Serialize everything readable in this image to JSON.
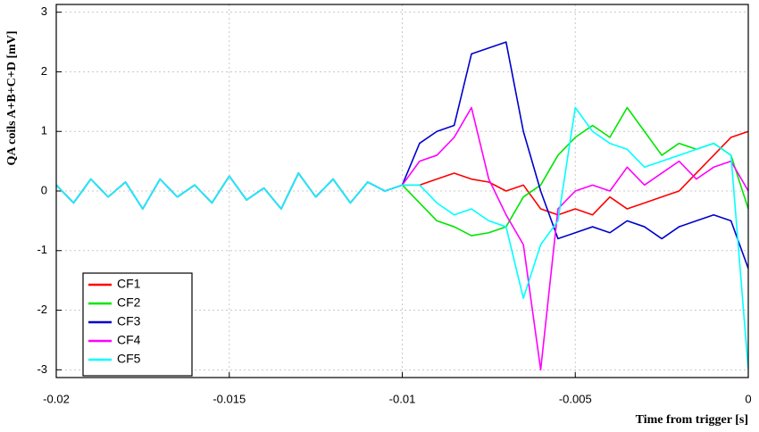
{
  "chart_data": {
    "type": "line",
    "xlabel": "Time from trigger [s]",
    "ylabel": "QA coils A+B+C+D [mV]",
    "x": [
      -0.02,
      -0.0195,
      -0.019,
      -0.0185,
      -0.018,
      -0.0175,
      -0.017,
      -0.0165,
      -0.016,
      -0.0155,
      -0.015,
      -0.0145,
      -0.014,
      -0.0135,
      -0.013,
      -0.0125,
      -0.012,
      -0.0115,
      -0.011,
      -0.0105,
      -0.01,
      -0.0095,
      -0.009,
      -0.0085,
      -0.008,
      -0.0075,
      -0.007,
      -0.0065,
      -0.006,
      -0.0055,
      -0.005,
      -0.0045,
      -0.004,
      -0.0035,
      -0.003,
      -0.0025,
      -0.002,
      -0.0015,
      -0.001,
      -0.0005,
      0
    ],
    "series": [
      {
        "name": "CF1",
        "color": "#ff0000",
        "values": [
          0.1,
          -0.2,
          0.2,
          -0.1,
          0.15,
          -0.3,
          0.2,
          -0.1,
          0.1,
          -0.2,
          0.25,
          -0.15,
          0.05,
          -0.3,
          0.3,
          -0.1,
          0.2,
          -0.2,
          0.15,
          0.0,
          0.1,
          0.1,
          0.2,
          0.3,
          0.2,
          0.15,
          0.0,
          0.1,
          -0.3,
          -0.4,
          -0.3,
          -0.4,
          -0.1,
          -0.3,
          -0.2,
          -0.1,
          0.0,
          0.3,
          0.6,
          0.9,
          1.0
        ]
      },
      {
        "name": "CF2",
        "color": "#00e600",
        "values": [
          0.1,
          -0.2,
          0.2,
          -0.1,
          0.15,
          -0.3,
          0.2,
          -0.1,
          0.1,
          -0.2,
          0.25,
          -0.15,
          0.05,
          -0.3,
          0.3,
          -0.1,
          0.2,
          -0.2,
          0.15,
          0.0,
          0.1,
          -0.2,
          -0.5,
          -0.6,
          -0.75,
          -0.7,
          -0.6,
          -0.1,
          0.1,
          0.6,
          0.9,
          1.1,
          0.9,
          1.4,
          1.0,
          0.6,
          0.8,
          0.7,
          0.8,
          0.6,
          -0.3
        ]
      },
      {
        "name": "CF3",
        "color": "#0000cc",
        "values": [
          0.1,
          -0.2,
          0.2,
          -0.1,
          0.15,
          -0.3,
          0.2,
          -0.1,
          0.1,
          -0.2,
          0.25,
          -0.15,
          0.05,
          -0.3,
          0.3,
          -0.1,
          0.2,
          -0.2,
          0.15,
          0.0,
          0.1,
          0.8,
          1.0,
          1.1,
          2.3,
          2.4,
          2.5,
          1.0,
          0.0,
          -0.8,
          -0.7,
          -0.6,
          -0.7,
          -0.5,
          -0.6,
          -0.8,
          -0.6,
          -0.5,
          -0.4,
          -0.5,
          -1.3
        ]
      },
      {
        "name": "CF4",
        "color": "#ff00ff",
        "values": [
          0.1,
          -0.2,
          0.2,
          -0.1,
          0.15,
          -0.3,
          0.2,
          -0.1,
          0.1,
          -0.2,
          0.25,
          -0.15,
          0.05,
          -0.3,
          0.3,
          -0.1,
          0.2,
          -0.2,
          0.15,
          0.0,
          0.1,
          0.5,
          0.6,
          0.9,
          1.4,
          0.2,
          -0.4,
          -0.9,
          -3.0,
          -0.3,
          0.0,
          0.1,
          0.0,
          0.4,
          0.1,
          0.3,
          0.5,
          0.2,
          0.4,
          0.5,
          0.0
        ]
      },
      {
        "name": "CF5",
        "color": "#00ffff",
        "values": [
          0.1,
          -0.2,
          0.2,
          -0.1,
          0.15,
          -0.3,
          0.2,
          -0.1,
          0.1,
          -0.2,
          0.25,
          -0.15,
          0.05,
          -0.3,
          0.3,
          -0.1,
          0.2,
          -0.2,
          0.15,
          0.0,
          0.1,
          0.1,
          -0.2,
          -0.4,
          -0.3,
          -0.5,
          -0.6,
          -1.8,
          -0.9,
          -0.5,
          1.4,
          1.0,
          0.8,
          0.7,
          0.4,
          0.5,
          0.6,
          0.7,
          0.8,
          0.6,
          -3.0
        ]
      }
    ],
    "xlim": [
      -0.02,
      0
    ],
    "ylim": [
      -3.13,
      3.13
    ],
    "xticks": [
      -0.02,
      -0.015,
      -0.01,
      -0.005,
      0
    ],
    "yticks": [
      -3,
      -2,
      -1,
      0,
      1,
      2,
      3
    ],
    "grid": true,
    "legend": "lower left"
  }
}
